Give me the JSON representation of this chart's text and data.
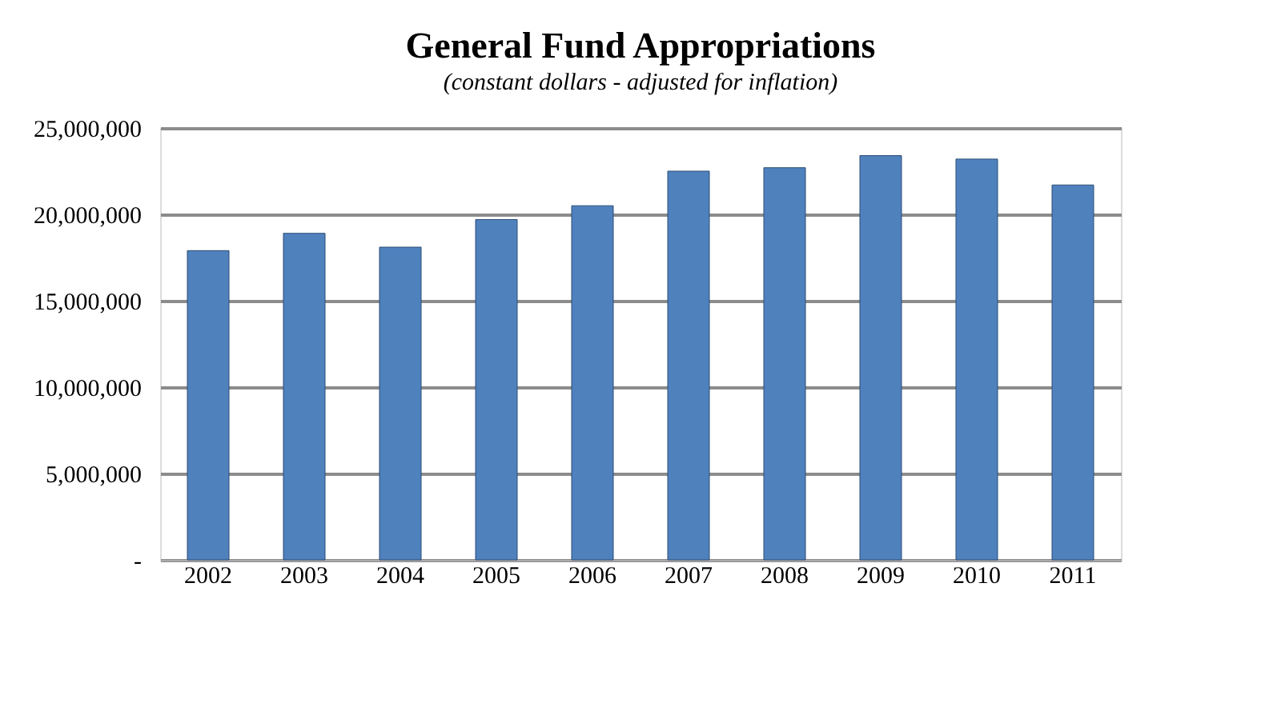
{
  "chart_data": {
    "type": "bar",
    "title": "General Fund Appropriations",
    "subtitle": "(constant dollars - adjusted for inflation)",
    "categories": [
      "2002",
      "2003",
      "2004",
      "2005",
      "2006",
      "2007",
      "2008",
      "2009",
      "2010",
      "2011"
    ],
    "values": [
      17900000,
      18900000,
      18100000,
      19700000,
      20500000,
      22500000,
      22700000,
      23400000,
      23200000,
      21700000
    ],
    "color": "#4f81bd",
    "ylim": [
      0,
      25000000
    ],
    "yticks": [
      {
        "value": 0,
        "label": "-"
      },
      {
        "value": 5000000,
        "label": "5,000,000"
      },
      {
        "value": 10000000,
        "label": "10,000,000"
      },
      {
        "value": 15000000,
        "label": "15,000,000"
      },
      {
        "value": 20000000,
        "label": "20,000,000"
      },
      {
        "value": 25000000,
        "label": "25,000,000"
      }
    ],
    "grid": "y"
  }
}
